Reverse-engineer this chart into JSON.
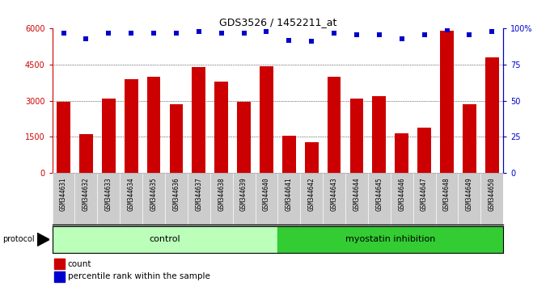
{
  "title": "GDS3526 / 1452211_at",
  "samples": [
    "GSM344631",
    "GSM344632",
    "GSM344633",
    "GSM344634",
    "GSM344635",
    "GSM344636",
    "GSM344637",
    "GSM344638",
    "GSM344639",
    "GSM344640",
    "GSM344641",
    "GSM344642",
    "GSM344643",
    "GSM344644",
    "GSM344645",
    "GSM344646",
    "GSM344647",
    "GSM344648",
    "GSM344649",
    "GSM344650"
  ],
  "counts": [
    2950,
    1620,
    3100,
    3900,
    4000,
    2850,
    4400,
    3800,
    2950,
    4450,
    1550,
    1280,
    4000,
    3100,
    3200,
    1650,
    1900,
    5900,
    2850,
    4800
  ],
  "percentile_ranks": [
    97,
    93,
    97,
    97,
    97,
    97,
    98,
    97,
    97,
    98,
    92,
    91,
    97,
    96,
    96,
    93,
    96,
    99,
    96,
    98
  ],
  "bar_color": "#cc0000",
  "dot_color": "#0000cc",
  "ylim_left": [
    0,
    6000
  ],
  "ylim_right": [
    0,
    100
  ],
  "yticks_left": [
    0,
    1500,
    3000,
    4500,
    6000
  ],
  "ytick_labels_left": [
    "0",
    "1500",
    "3000",
    "4500",
    "6000"
  ],
  "yticks_right": [
    0,
    25,
    50,
    75,
    100
  ],
  "ytick_labels_right": [
    "0",
    "25",
    "50",
    "75",
    "100%"
  ],
  "grid_lines": [
    1500,
    3000,
    4500
  ],
  "control_color": "#bbffbb",
  "inhibition_color": "#33cc33",
  "label_bg_color": "#cccccc",
  "control_label": "control",
  "inhibition_label": "myostatin inhibition",
  "protocol_label": "protocol",
  "legend_count": "count",
  "legend_pct": "percentile rank within the sample",
  "n_control": 10,
  "n_inhibition": 10
}
